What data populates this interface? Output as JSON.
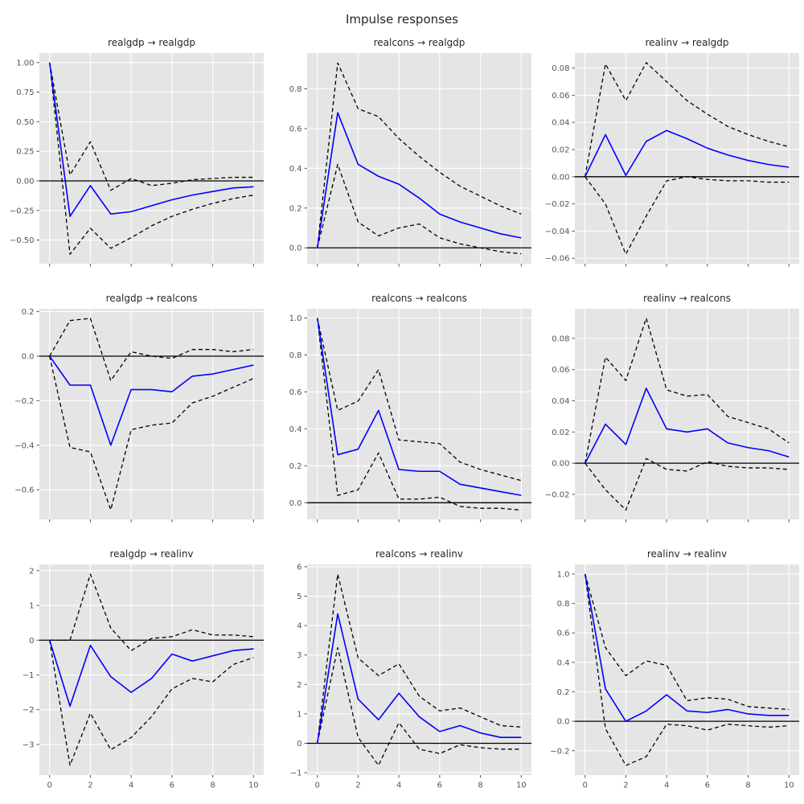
{
  "figure_title": "Impulse responses",
  "style": {
    "figure_bg": "#ffffff",
    "plot_bg": "#e5e5e5",
    "grid_color": "#ffffff",
    "response_color": "#0000ff",
    "ci_color": "#000000",
    "zero_line_color": "#000000",
    "tick_label_color": "#555555",
    "title_color": "#262626"
  },
  "chart_data": [
    {
      "type": "line",
      "title": "realgdp → realgdp",
      "x": [
        0,
        1,
        2,
        3,
        4,
        5,
        6,
        7,
        8,
        9,
        10
      ],
      "series": [
        {
          "name": "response",
          "values": [
            1.0,
            -0.3,
            -0.04,
            -0.28,
            -0.26,
            -0.21,
            -0.16,
            -0.12,
            -0.09,
            -0.06,
            -0.05
          ]
        },
        {
          "name": "upper-ci",
          "values": [
            1.0,
            0.05,
            0.33,
            -0.08,
            0.02,
            -0.04,
            -0.02,
            0.01,
            0.02,
            0.03,
            0.03
          ]
        },
        {
          "name": "lower-ci",
          "values": [
            1.0,
            -0.62,
            -0.4,
            -0.57,
            -0.48,
            -0.38,
            -0.3,
            -0.24,
            -0.19,
            -0.15,
            -0.12
          ]
        }
      ],
      "xlim": [
        -0.5,
        10.5
      ],
      "ylim": [
        -0.7,
        1.08
      ],
      "xticks": [
        0,
        2,
        4,
        6,
        8,
        10
      ],
      "yticks": [
        1.0,
        0.75,
        0.5,
        0.25,
        0.0,
        -0.25,
        -0.5
      ],
      "ytick_decimals": 2,
      "show_x_labels": false
    },
    {
      "type": "line",
      "title": "realcons → realgdp",
      "x": [
        0,
        1,
        2,
        3,
        4,
        5,
        6,
        7,
        8,
        9,
        10
      ],
      "series": [
        {
          "name": "response",
          "values": [
            0.0,
            0.68,
            0.42,
            0.36,
            0.32,
            0.25,
            0.17,
            0.13,
            0.1,
            0.07,
            0.05
          ]
        },
        {
          "name": "upper-ci",
          "values": [
            0.0,
            0.93,
            0.7,
            0.66,
            0.55,
            0.46,
            0.38,
            0.31,
            0.26,
            0.21,
            0.17
          ]
        },
        {
          "name": "lower-ci",
          "values": [
            0.0,
            0.42,
            0.13,
            0.06,
            0.1,
            0.12,
            0.05,
            0.02,
            0.0,
            -0.02,
            -0.03
          ]
        }
      ],
      "xlim": [
        -0.5,
        10.5
      ],
      "ylim": [
        -0.08,
        0.98
      ],
      "xticks": [
        0,
        2,
        4,
        6,
        8,
        10
      ],
      "yticks": [
        0.8,
        0.6,
        0.4,
        0.2,
        0.0
      ],
      "ytick_decimals": 1,
      "show_x_labels": false
    },
    {
      "type": "line",
      "title": "realinv → realgdp",
      "x": [
        0,
        1,
        2,
        3,
        4,
        5,
        6,
        7,
        8,
        9,
        10
      ],
      "series": [
        {
          "name": "response",
          "values": [
            0.0,
            0.031,
            0.001,
            0.026,
            0.034,
            0.028,
            0.021,
            0.016,
            0.012,
            0.009,
            0.007
          ]
        },
        {
          "name": "upper-ci",
          "values": [
            0.0,
            0.083,
            0.056,
            0.084,
            0.07,
            0.056,
            0.046,
            0.037,
            0.031,
            0.026,
            0.022
          ]
        },
        {
          "name": "lower-ci",
          "values": [
            0.0,
            -0.02,
            -0.057,
            -0.029,
            -0.003,
            0.0,
            -0.002,
            -0.003,
            -0.003,
            -0.004,
            -0.004
          ]
        }
      ],
      "xlim": [
        -0.5,
        10.5
      ],
      "ylim": [
        -0.064,
        0.091
      ],
      "xticks": [
        0,
        2,
        4,
        6,
        8,
        10
      ],
      "yticks": [
        0.08,
        0.06,
        0.04,
        0.02,
        0.0,
        -0.02,
        -0.04,
        -0.06
      ],
      "ytick_decimals": 2,
      "show_x_labels": false
    },
    {
      "type": "line",
      "title": "realgdp → realcons",
      "x": [
        0,
        1,
        2,
        3,
        4,
        5,
        6,
        7,
        8,
        9,
        10
      ],
      "series": [
        {
          "name": "response",
          "values": [
            0.0,
            -0.13,
            -0.13,
            -0.4,
            -0.15,
            -0.15,
            -0.16,
            -0.09,
            -0.08,
            -0.06,
            -0.04
          ]
        },
        {
          "name": "upper-ci",
          "values": [
            0.0,
            0.16,
            0.17,
            -0.11,
            0.02,
            0.0,
            -0.01,
            0.03,
            0.03,
            0.02,
            0.03
          ]
        },
        {
          "name": "lower-ci",
          "values": [
            0.0,
            -0.41,
            -0.43,
            -0.69,
            -0.33,
            -0.31,
            -0.3,
            -0.21,
            -0.18,
            -0.14,
            -0.1
          ]
        }
      ],
      "xlim": [
        -0.5,
        10.5
      ],
      "ylim": [
        -0.733,
        0.213
      ],
      "xticks": [
        0,
        2,
        4,
        6,
        8,
        10
      ],
      "yticks": [
        0.2,
        0.0,
        -0.2,
        -0.4,
        -0.6
      ],
      "ytick_decimals": 1,
      "show_x_labels": false
    },
    {
      "type": "line",
      "title": "realcons → realcons",
      "x": [
        0,
        1,
        2,
        3,
        4,
        5,
        6,
        7,
        8,
        9,
        10
      ],
      "series": [
        {
          "name": "response",
          "values": [
            1.0,
            0.26,
            0.29,
            0.5,
            0.18,
            0.17,
            0.17,
            0.1,
            0.08,
            0.06,
            0.04
          ]
        },
        {
          "name": "upper-ci",
          "values": [
            1.0,
            0.5,
            0.55,
            0.72,
            0.34,
            0.33,
            0.32,
            0.22,
            0.18,
            0.15,
            0.12
          ]
        },
        {
          "name": "lower-ci",
          "values": [
            1.0,
            0.04,
            0.07,
            0.27,
            0.02,
            0.02,
            0.03,
            -0.02,
            -0.03,
            -0.03,
            -0.04
          ]
        }
      ],
      "xlim": [
        -0.5,
        10.5
      ],
      "ylim": [
        -0.09,
        1.05
      ],
      "xticks": [
        0,
        2,
        4,
        6,
        8,
        10
      ],
      "yticks": [
        1.0,
        0.8,
        0.6,
        0.4,
        0.2,
        0.0
      ],
      "ytick_decimals": 1,
      "show_x_labels": false
    },
    {
      "type": "line",
      "title": "realinv → realcons",
      "x": [
        0,
        1,
        2,
        3,
        4,
        5,
        6,
        7,
        8,
        9,
        10
      ],
      "series": [
        {
          "name": "response",
          "values": [
            0.0,
            0.025,
            0.012,
            0.048,
            0.022,
            0.02,
            0.022,
            0.013,
            0.01,
            0.008,
            0.004
          ]
        },
        {
          "name": "upper-ci",
          "values": [
            0.0,
            0.068,
            0.053,
            0.093,
            0.047,
            0.043,
            0.044,
            0.03,
            0.026,
            0.022,
            0.013
          ]
        },
        {
          "name": "lower-ci",
          "values": [
            0.0,
            -0.017,
            -0.03,
            0.003,
            -0.004,
            -0.005,
            0.001,
            -0.002,
            -0.003,
            -0.003,
            -0.004
          ]
        }
      ],
      "xlim": [
        -0.5,
        10.5
      ],
      "ylim": [
        -0.036,
        0.099
      ],
      "xticks": [
        0,
        2,
        4,
        6,
        8,
        10
      ],
      "yticks": [
        0.08,
        0.06,
        0.04,
        0.02,
        0.0,
        -0.02
      ],
      "ytick_decimals": 2,
      "show_x_labels": false
    },
    {
      "type": "line",
      "title": "realgdp → realinv",
      "x": [
        0,
        1,
        2,
        3,
        4,
        5,
        6,
        7,
        8,
        9,
        10
      ],
      "series": [
        {
          "name": "response",
          "values": [
            0.0,
            -1.9,
            -0.15,
            -1.05,
            -1.5,
            -1.1,
            -0.4,
            -0.6,
            -0.45,
            -0.3,
            -0.25
          ]
        },
        {
          "name": "upper-ci",
          "values": [
            0.0,
            0.0,
            1.9,
            0.35,
            -0.3,
            0.05,
            0.1,
            0.3,
            0.15,
            0.15,
            0.1
          ]
        },
        {
          "name": "lower-ci",
          "values": [
            0.0,
            -3.6,
            -2.1,
            -3.15,
            -2.8,
            -2.2,
            -1.4,
            -1.1,
            -1.2,
            -0.7,
            -0.5
          ]
        }
      ],
      "xlim": [
        -0.5,
        10.5
      ],
      "ylim": [
        -3.88,
        2.18
      ],
      "xticks": [
        0,
        2,
        4,
        6,
        8,
        10
      ],
      "yticks": [
        2,
        1,
        0,
        -1,
        -2,
        -3
      ],
      "ytick_decimals": 0,
      "show_x_labels": true
    },
    {
      "type": "line",
      "title": "realcons → realinv",
      "x": [
        0,
        1,
        2,
        3,
        4,
        5,
        6,
        7,
        8,
        9,
        10
      ],
      "series": [
        {
          "name": "response",
          "values": [
            0.0,
            4.4,
            1.5,
            0.8,
            1.7,
            0.9,
            0.4,
            0.6,
            0.35,
            0.2,
            0.2
          ]
        },
        {
          "name": "upper-ci",
          "values": [
            0.0,
            5.75,
            2.9,
            2.3,
            2.7,
            1.6,
            1.1,
            1.2,
            0.9,
            0.6,
            0.55
          ]
        },
        {
          "name": "lower-ci",
          "values": [
            0.0,
            3.25,
            0.2,
            -0.75,
            0.7,
            -0.2,
            -0.35,
            -0.05,
            -0.15,
            -0.2,
            -0.2
          ]
        }
      ],
      "xlim": [
        -0.5,
        10.5
      ],
      "ylim": [
        -1.08,
        6.08
      ],
      "xticks": [
        0,
        2,
        4,
        6,
        8,
        10
      ],
      "yticks": [
        6,
        5,
        4,
        3,
        2,
        1,
        0,
        -1
      ],
      "ytick_decimals": 0,
      "show_x_labels": true
    },
    {
      "type": "line",
      "title": "realinv → realinv",
      "x": [
        0,
        1,
        2,
        3,
        4,
        5,
        6,
        7,
        8,
        9,
        10
      ],
      "series": [
        {
          "name": "response",
          "values": [
            1.0,
            0.22,
            0.0,
            0.07,
            0.18,
            0.07,
            0.06,
            0.08,
            0.05,
            0.04,
            0.04
          ]
        },
        {
          "name": "upper-ci",
          "values": [
            1.0,
            0.5,
            0.31,
            0.41,
            0.38,
            0.14,
            0.16,
            0.15,
            0.1,
            0.09,
            0.08
          ]
        },
        {
          "name": "lower-ci",
          "values": [
            1.0,
            -0.05,
            -0.3,
            -0.24,
            -0.02,
            -0.03,
            -0.06,
            -0.02,
            -0.03,
            -0.04,
            -0.03
          ]
        }
      ],
      "xlim": [
        -0.5,
        10.5
      ],
      "ylim": [
        -0.365,
        1.065
      ],
      "xticks": [
        0,
        2,
        4,
        6,
        8,
        10
      ],
      "yticks": [
        1.0,
        0.8,
        0.6,
        0.4,
        0.2,
        0.0,
        -0.2
      ],
      "ytick_decimals": 1,
      "show_x_labels": true
    }
  ]
}
